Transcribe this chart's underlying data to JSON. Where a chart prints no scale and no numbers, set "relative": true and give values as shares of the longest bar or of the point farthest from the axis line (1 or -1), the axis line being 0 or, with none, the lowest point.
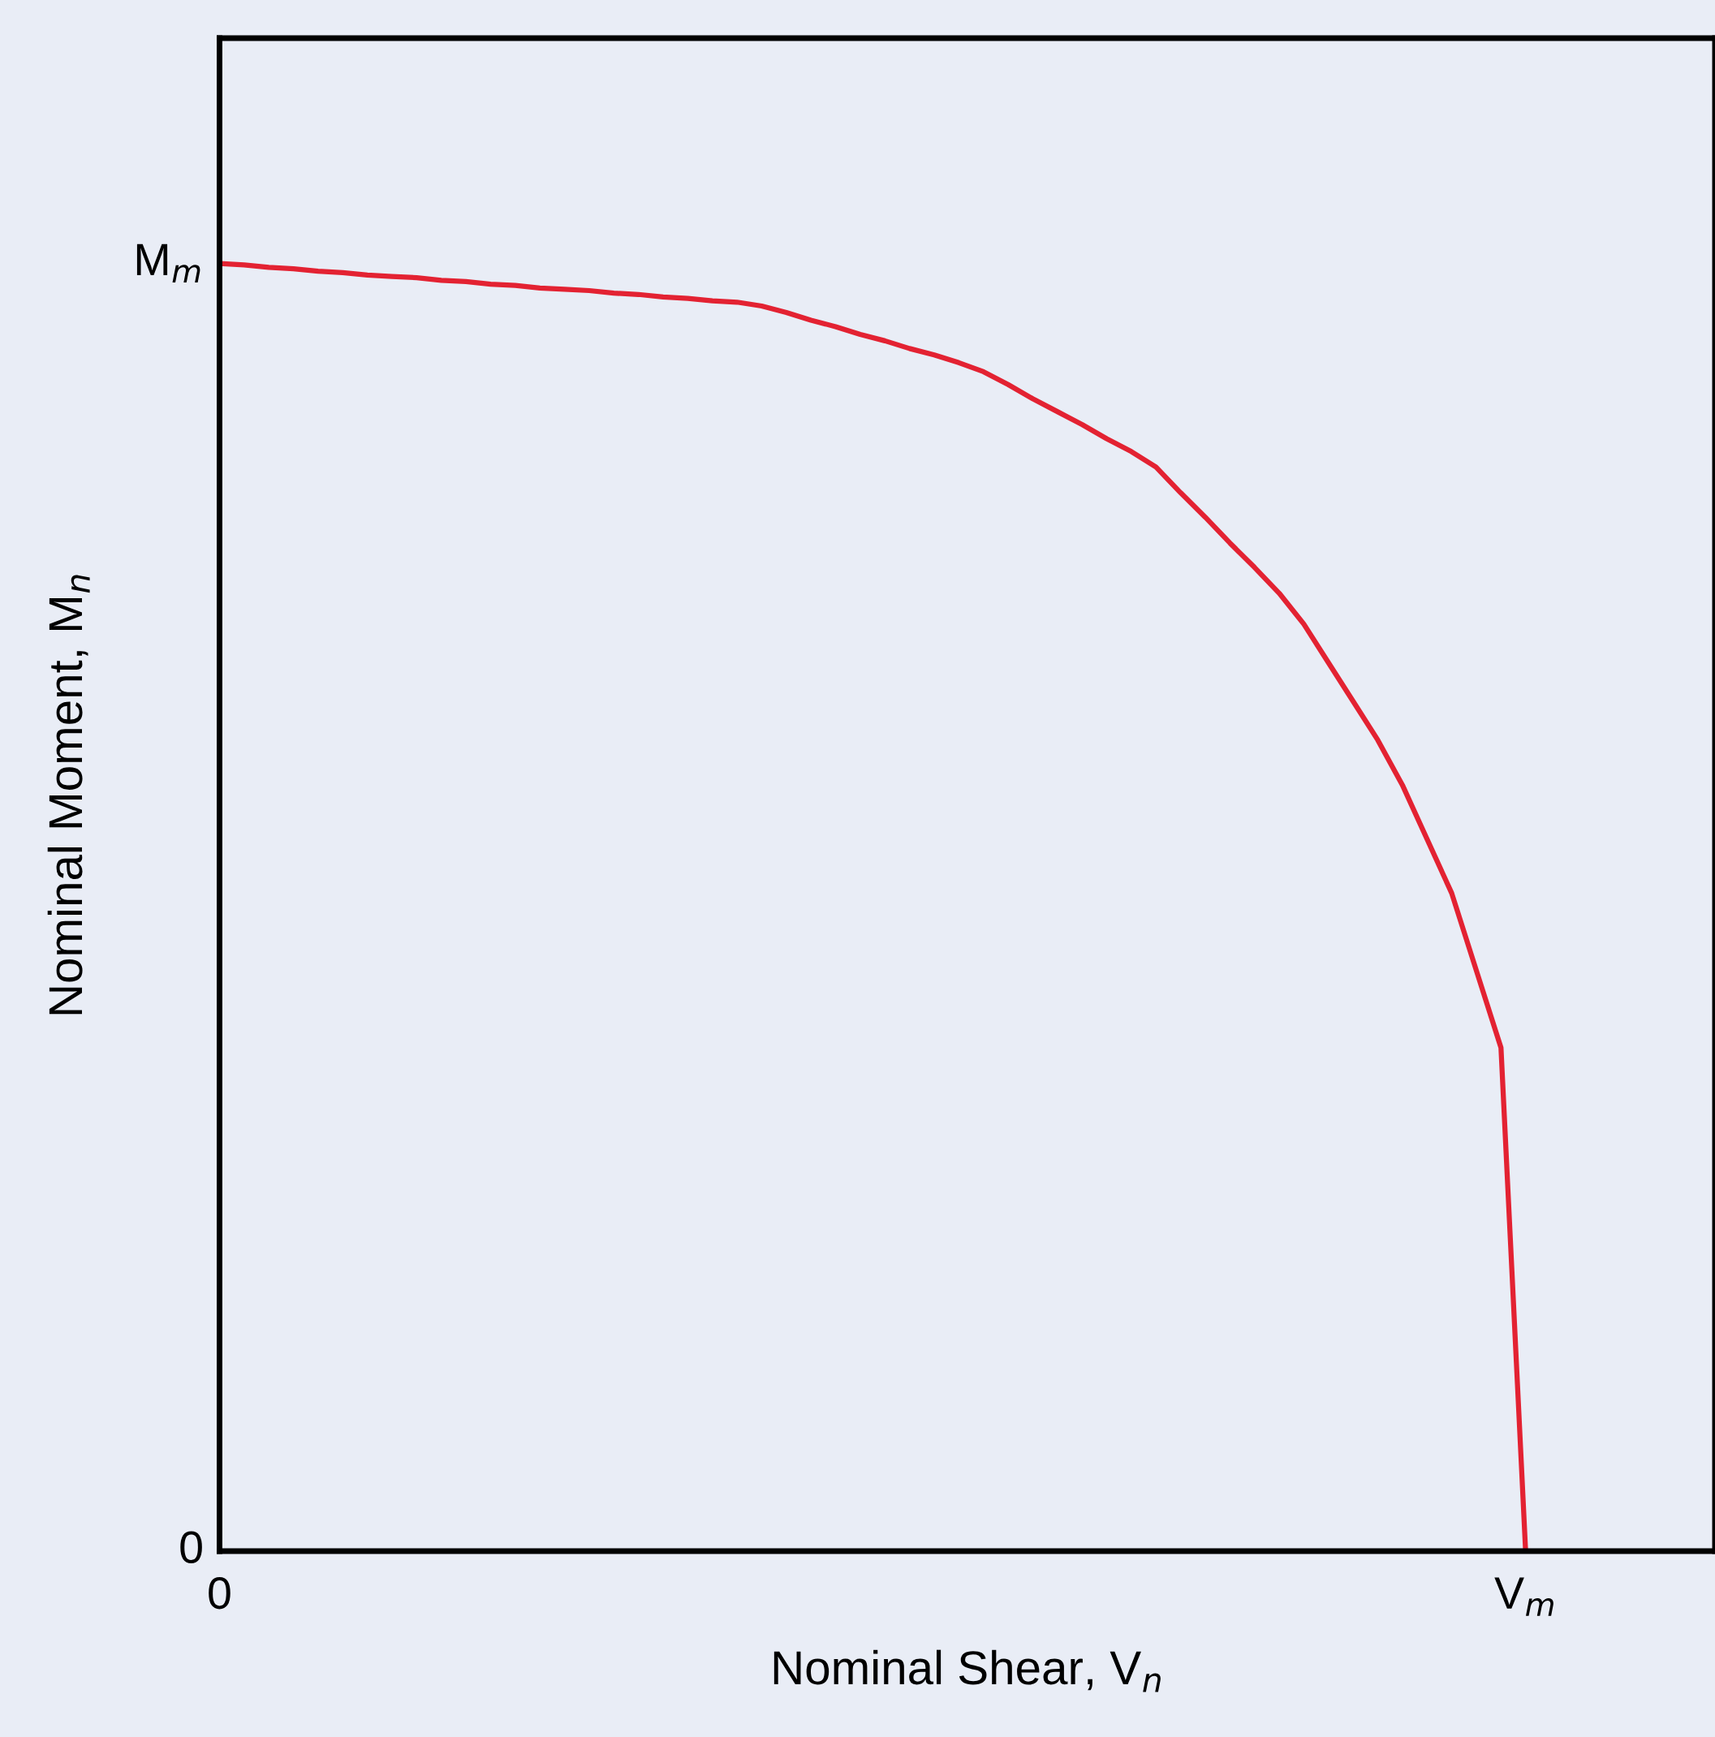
{
  "chart_data": {
    "type": "line",
    "relative": true,
    "xlabel": "Nominal Shear, V$_{n}$",
    "ylabel": "Nominal Moment, M$_{n}$",
    "categories": [
      null,
      null,
      null,
      null,
      null,
      null,
      null,
      null,
      null,
      null,
      null,
      null,
      null,
      null,
      null,
      null,
      null,
      null,
      null,
      null,
      null,
      null,
      null,
      null,
      null,
      null,
      null,
      null,
      null,
      null,
      null,
      null,
      null,
      null,
      null,
      null,
      null,
      null,
      null,
      null,
      null,
      null,
      null,
      null,
      null,
      null,
      null,
      null,
      null,
      null,
      null,
      null,
      null,
      null
    ],
    "series": [
      {
        "color": "#e32232",
        "values": [
          1,
          0.999,
          0.997,
          0.996,
          0.994,
          0.993,
          0.991,
          0.99,
          0.989,
          0.987,
          0.986,
          0.984,
          0.983,
          0.981,
          0.98,
          0.979,
          0.977,
          0.976,
          0.974,
          0.973,
          0.971,
          0.97,
          0.967,
          0.962,
          0.956,
          0.951,
          0.945,
          0.94,
          0.934,
          0.929,
          0.923,
          0.916,
          0.906,
          0.895,
          0.885,
          0.875,
          0.864,
          0.854,
          0.842,
          0.822,
          0.803,
          0.783,
          0.764,
          0.744,
          0.72,
          0.69,
          0.66,
          0.63,
          0.595,
          0.553,
          0.511,
          0.451,
          0.391,
          0
        ]
      }
    ],
    "annotations": [
      "0",
      "M$_{m}$",
      "0",
      "V$_{m}$"
    ],
    "marker": "none",
    "line_style": "solid"
  }
}
